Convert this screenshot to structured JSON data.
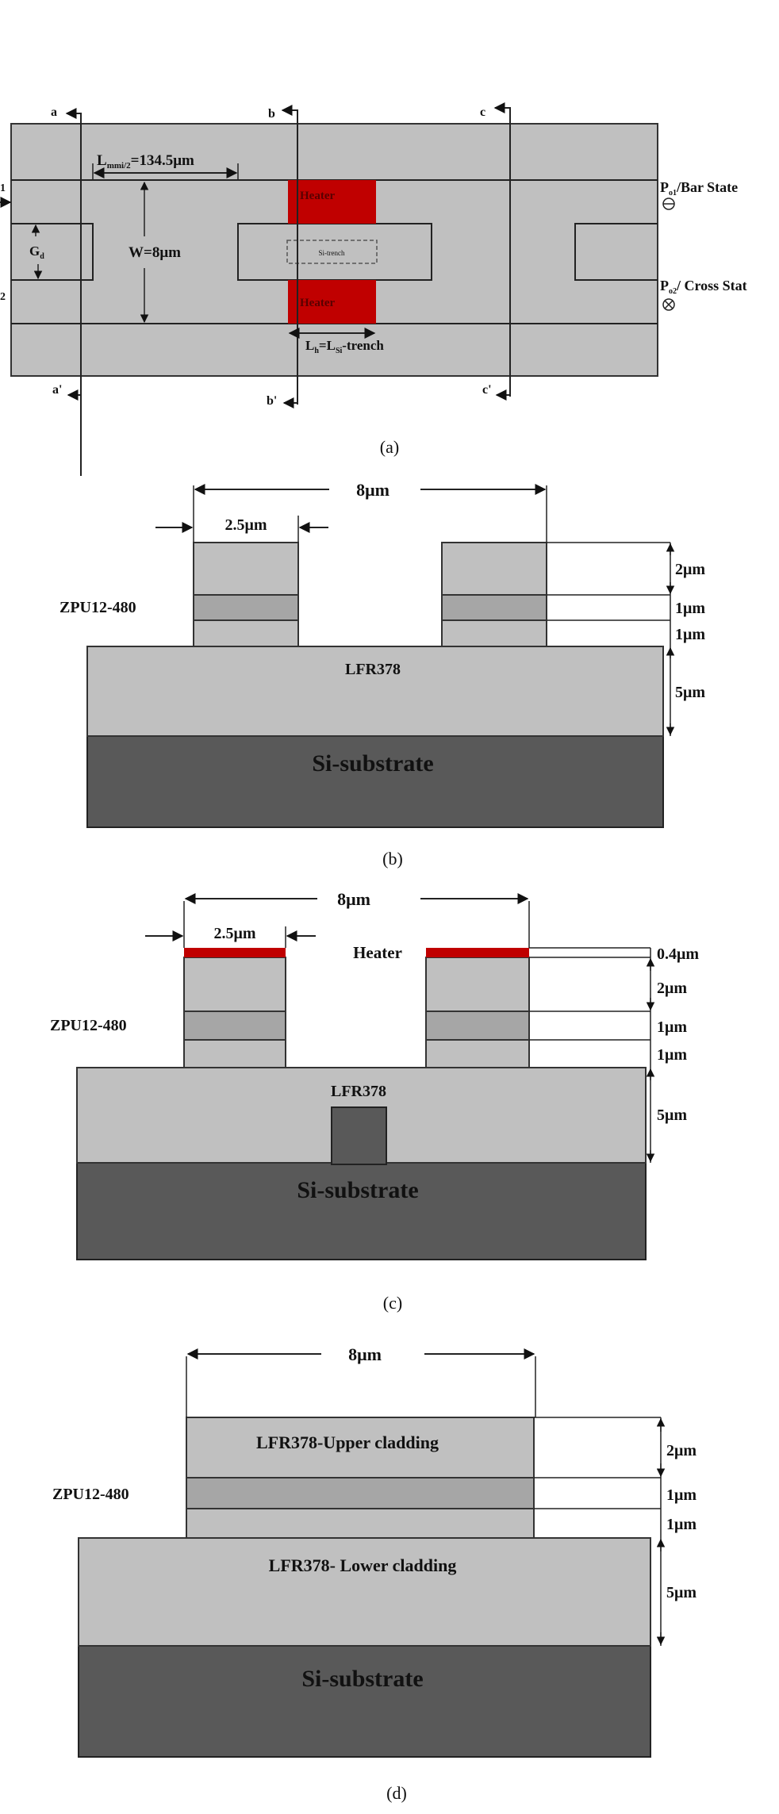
{
  "colors": {
    "cladding": "#c0c0c0",
    "core": "#a6a6a6",
    "substrate": "#595959",
    "heater": "#c00000"
  },
  "panel_a": {
    "caption": "(a)",
    "section_a": "a",
    "section_a_prime": "a'",
    "section_b": "b",
    "section_b_prime": "b'",
    "section_c": "c",
    "section_c_prime": "c'",
    "port_in_1": "1",
    "port_in_2": "2",
    "lmmi_main": "L",
    "lmmi_sub": "mmi/2",
    "lmmi_value": "=134.5μm",
    "width": "W=8μm",
    "gap_main": "G",
    "gap_sub": "d",
    "heater_top": "Heater",
    "heater_bottom": "Heater",
    "si_trench": "Si-trench",
    "lh_main": "L",
    "lh_sub": "h",
    "lh_eq": "=L",
    "lh_sub2": "Si",
    "lh_rest": "-trench",
    "po1_main": "P",
    "po1_sub": "o1",
    "po1_rest": "/Bar State",
    "po2_main": "P",
    "po2_sub": "o2",
    "po2_rest": "/ Cross Stat",
    "po1_icon": "circle-minus-icon",
    "po2_icon": "circle-times-icon"
  },
  "panel_b": {
    "caption": "(b)",
    "width": "8μm",
    "rib_width": "2.5μm",
    "core_label": "ZPU12-480",
    "cladding_label": "LFR378",
    "substrate_label": "Si-substrate",
    "dims": [
      "2μm",
      "1μm",
      "1μm",
      "5μm"
    ]
  },
  "panel_c": {
    "caption": "(c)",
    "width": "8μm",
    "rib_width": "2.5μm",
    "heater_label": "Heater",
    "core_label": "ZPU12-480",
    "cladding_label": "LFR378",
    "substrate_label": "Si-substrate",
    "dims": [
      "0.4μm",
      "2μm",
      "1μm",
      "1μm",
      "5μm"
    ]
  },
  "panel_d": {
    "caption": "(d)",
    "width": "8μm",
    "upper_label": "LFR378-Upper cladding",
    "core_label": "ZPU12-480",
    "lower_label": "LFR378- Lower cladding",
    "substrate_label": "Si-substrate",
    "dims": [
      "2μm",
      "1μm",
      "1μm",
      "5μm"
    ]
  }
}
